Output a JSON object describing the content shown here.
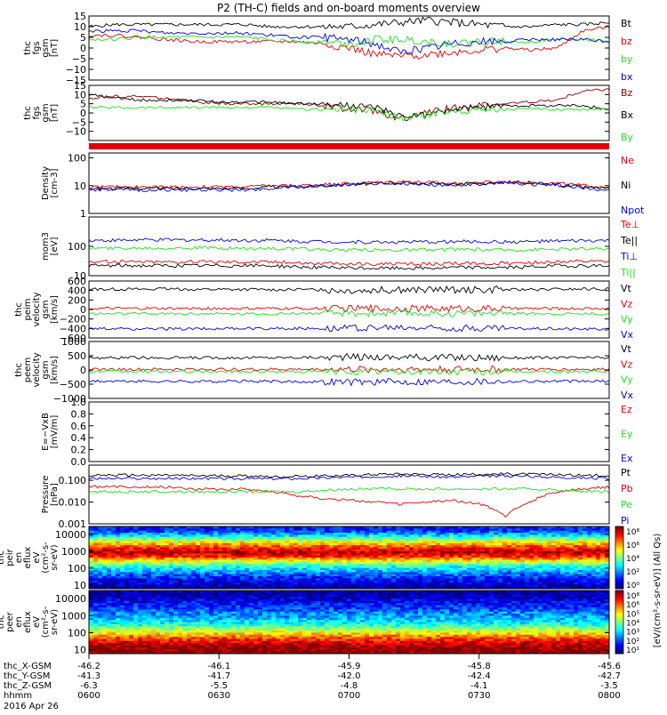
{
  "title": "P2 (TH-C) fields and on-board moments overview",
  "colors": {
    "black": "#000000",
    "red": "#e00000",
    "darkred": "#8b0000",
    "green": "#1ee01e",
    "blue": "#0000e0"
  },
  "chart_data": [
    {
      "type": "line",
      "ylabel_lines": [
        "thc",
        "fgs",
        "gsm",
        "[nT]"
      ],
      "ylim": [
        -15,
        15
      ],
      "yticks": [
        "15",
        "10",
        "5",
        "0",
        "−5",
        "−10",
        "−15"
      ],
      "tick_values": [
        15,
        10,
        5,
        0,
        -5,
        -10,
        -15
      ],
      "series": [
        {
          "name": "Bt",
          "color": "black",
          "values": [
            10,
            11,
            11,
            11,
            11,
            11,
            11,
            10,
            10,
            10,
            10,
            11,
            12,
            13,
            12,
            11,
            10,
            10,
            11,
            11,
            12
          ]
        },
        {
          "name": "bz",
          "color": "red",
          "values": [
            6,
            6,
            5,
            4,
            3,
            3,
            3,
            3,
            3,
            2,
            0,
            -3,
            -4,
            -3,
            -2,
            -1,
            0,
            -1,
            0,
            8,
            10
          ]
        },
        {
          "name": "by",
          "color": "green",
          "values": [
            4,
            4,
            5,
            5,
            5,
            5,
            5,
            4,
            3,
            3,
            2,
            4,
            4,
            3,
            2,
            3,
            3,
            3,
            4,
            4,
            3
          ]
        },
        {
          "name": "bx",
          "color": "blue",
          "values": [
            8,
            8,
            8,
            7,
            7,
            7,
            7,
            6,
            5,
            5,
            4,
            2,
            -2,
            0,
            2,
            3,
            3,
            4,
            4,
            4,
            3
          ]
        }
      ]
    },
    {
      "type": "line",
      "ylabel_lines": [
        "thc",
        "fgs",
        "gsm",
        "[nT]"
      ],
      "ylim": [
        -15,
        15
      ],
      "yticks": [
        "15",
        "10",
        "5",
        "0",
        "−5",
        "−10"
      ],
      "tick_values": [
        15,
        10,
        5,
        0,
        -5,
        -10
      ],
      "series": [
        {
          "name": "Bz",
          "color": "darkred",
          "values": [
            8,
            9,
            9,
            8,
            6,
            5,
            5,
            5,
            5,
            4,
            2,
            1,
            -3,
            0,
            3,
            4,
            5,
            6,
            7,
            12,
            13
          ]
        },
        {
          "name": "Bx",
          "color": "black",
          "values": [
            10,
            8,
            7,
            7,
            7,
            6,
            6,
            6,
            5,
            5,
            4,
            3,
            -2,
            -1,
            2,
            3,
            4,
            4,
            4,
            4,
            2
          ]
        },
        {
          "name": "By",
          "color": "green",
          "values": [
            3,
            3,
            3,
            3,
            3,
            3,
            3,
            3,
            2,
            2,
            2,
            1,
            -3,
            -1,
            1,
            2,
            2,
            2,
            2,
            2,
            2
          ]
        }
      ]
    },
    {
      "type": "line",
      "ylabel_lines": [
        "Density",
        "[cm-3]"
      ],
      "yscale": "log",
      "ylim": [
        1,
        150
      ],
      "yticks": [
        "100",
        "10",
        "1"
      ],
      "tick_values": [
        100,
        10,
        1
      ],
      "series": [
        {
          "name": "Ne",
          "color": "red",
          "values": [
            9,
            9,
            9,
            9,
            9,
            9,
            9,
            10,
            10,
            11,
            12,
            13,
            14,
            13,
            12,
            13,
            14,
            13,
            12,
            10,
            9
          ]
        },
        {
          "name": "Ni",
          "color": "black",
          "values": [
            8,
            8,
            8,
            8,
            8,
            8,
            8,
            9,
            9,
            10,
            11,
            12,
            13,
            12,
            11,
            12,
            13,
            12,
            11,
            9,
            8
          ]
        },
        {
          "name": "Npot",
          "color": "blue",
          "values": [
            7,
            7,
            7,
            7,
            7,
            7,
            7,
            8,
            9,
            10,
            11,
            12,
            12,
            11,
            10,
            11,
            12,
            11,
            10,
            8,
            7
          ]
        }
      ]
    },
    {
      "type": "line",
      "ylabel_lines": [
        "mom3",
        "[eV]"
      ],
      "yscale": "log",
      "ylim": [
        10,
        1000
      ],
      "yticks": [
        "100",
        "10"
      ],
      "tick_values": [
        100,
        10
      ],
      "series": [
        {
          "name": "Te⊥",
          "color": "red",
          "values": [
            30,
            30,
            30,
            30,
            30,
            30,
            30,
            30,
            28,
            26,
            25,
            25,
            25,
            25,
            26,
            26,
            26,
            28,
            30,
            30,
            30
          ]
        },
        {
          "name": "Te||",
          "color": "black",
          "values": [
            22,
            22,
            22,
            22,
            22,
            22,
            22,
            22,
            20,
            19,
            18,
            18,
            18,
            18,
            19,
            19,
            19,
            20,
            22,
            22,
            22
          ]
        },
        {
          "name": "Ti⊥",
          "color": "blue",
          "values": [
            160,
            160,
            165,
            165,
            165,
            165,
            160,
            160,
            150,
            145,
            140,
            140,
            140,
            140,
            145,
            145,
            140,
            145,
            150,
            155,
            155
          ]
        },
        {
          "name": "Ti||",
          "color": "green",
          "values": [
            85,
            85,
            88,
            88,
            88,
            88,
            85,
            85,
            80,
            78,
            75,
            75,
            75,
            75,
            78,
            78,
            75,
            78,
            80,
            82,
            82
          ]
        }
      ]
    },
    {
      "type": "line",
      "ylabel_lines": [
        "thc",
        "peim",
        "velocity",
        "gsm",
        "[km/s]"
      ],
      "ylim": [
        -600,
        600
      ],
      "yticks": [
        "600",
        "400",
        "200",
        "0",
        "−200",
        "−400",
        "−600"
      ],
      "tick_values": [
        600,
        400,
        200,
        0,
        -200,
        -400,
        -600
      ],
      "series": [
        {
          "name": "Vt",
          "color": "black",
          "values": [
            430,
            430,
            430,
            430,
            425,
            425,
            420,
            420,
            420,
            415,
            410,
            410,
            410,
            410,
            415,
            420,
            420,
            420,
            425,
            430,
            430
          ]
        },
        {
          "name": "Vz",
          "color": "red",
          "values": [
            20,
            20,
            20,
            20,
            20,
            20,
            20,
            20,
            20,
            20,
            20,
            20,
            20,
            20,
            20,
            20,
            20,
            20,
            20,
            20,
            20
          ]
        },
        {
          "name": "Vy",
          "color": "green",
          "values": [
            -90,
            -90,
            -90,
            -90,
            -90,
            -90,
            -90,
            -90,
            -80,
            -80,
            -80,
            -80,
            -80,
            -80,
            -80,
            -80,
            -80,
            -80,
            -90,
            -90,
            -90
          ]
        },
        {
          "name": "Vx",
          "color": "blue",
          "values": [
            -410,
            -410,
            -410,
            -410,
            -405,
            -405,
            -400,
            -400,
            -400,
            -395,
            -390,
            -390,
            -390,
            -390,
            -395,
            -400,
            -400,
            -400,
            -405,
            -410,
            -410
          ]
        }
      ]
    },
    {
      "type": "line",
      "ylabel_lines": [
        "thc",
        "peem",
        "velocity",
        "gsm",
        "[km/s]"
      ],
      "ylim": [
        -1000,
        1000
      ],
      "yticks": [
        "1000",
        "500",
        "0",
        "−500",
        "−1000"
      ],
      "tick_values": [
        1000,
        500,
        0,
        -500,
        -1000
      ],
      "series": [
        {
          "name": "Vt",
          "color": "black",
          "values": [
            430,
            430,
            430,
            430,
            430,
            430,
            430,
            430,
            440,
            440,
            450,
            450,
            450,
            440,
            440,
            430,
            430,
            430,
            430,
            430,
            430
          ]
        },
        {
          "name": "Vz",
          "color": "red",
          "values": [
            20,
            20,
            20,
            20,
            20,
            20,
            20,
            20,
            20,
            20,
            20,
            20,
            20,
            20,
            20,
            20,
            20,
            20,
            20,
            20,
            20
          ]
        },
        {
          "name": "Vy",
          "color": "green",
          "values": [
            -60,
            -60,
            -60,
            -60,
            -60,
            -60,
            -60,
            -60,
            -60,
            -60,
            -60,
            -60,
            -60,
            -60,
            -60,
            -60,
            -60,
            -60,
            -60,
            -60,
            -60
          ]
        },
        {
          "name": "Vx",
          "color": "blue",
          "values": [
            -400,
            -400,
            -400,
            -400,
            -400,
            -400,
            -400,
            -400,
            -410,
            -410,
            -420,
            -420,
            -420,
            -410,
            -410,
            -400,
            -400,
            -400,
            -400,
            -400,
            -400
          ]
        }
      ]
    },
    {
      "type": "line",
      "ylabel_lines": [
        "E=−VxB",
        "[mV/m]"
      ],
      "ylim": [
        0,
        1
      ],
      "yticks": [
        "1.0",
        "0.8",
        "0.6",
        "0.4",
        "0.2",
        "0.0"
      ],
      "tick_values": [
        1.0,
        0.8,
        0.6,
        0.4,
        0.2,
        0.0
      ],
      "series": [
        {
          "name": "Ez",
          "color": "red",
          "values": []
        },
        {
          "name": "Ey",
          "color": "green",
          "values": []
        },
        {
          "name": "Ex",
          "color": "blue",
          "values": []
        }
      ]
    },
    {
      "type": "line",
      "ylabel_lines": [
        "Pressure",
        "[nPa]"
      ],
      "yscale": "log",
      "ylim": [
        0.001,
        0.5
      ],
      "yticks": [
        "0.100",
        "0.010",
        "0.001"
      ],
      "tick_values": [
        0.1,
        0.01,
        0.001
      ],
      "series": [
        {
          "name": "Pt",
          "color": "black",
          "values": [
            0.17,
            0.17,
            0.17,
            0.17,
            0.16,
            0.16,
            0.16,
            0.15,
            0.15,
            0.16,
            0.17,
            0.19,
            0.2,
            0.19,
            0.18,
            0.19,
            0.2,
            0.19,
            0.18,
            0.17,
            0.17
          ]
        },
        {
          "name": "Pb",
          "color": "red",
          "values": [
            0.05,
            0.05,
            0.05,
            0.05,
            0.04,
            0.04,
            0.04,
            0.03,
            0.02,
            0.015,
            0.012,
            0.01,
            0.008,
            0.01,
            0.012,
            0.008,
            0.002,
            0.01,
            0.03,
            0.04,
            0.05
          ]
        },
        {
          "name": "Pe",
          "color": "green",
          "values": [
            0.03,
            0.03,
            0.03,
            0.03,
            0.03,
            0.03,
            0.03,
            0.03,
            0.03,
            0.035,
            0.04,
            0.04,
            0.04,
            0.04,
            0.04,
            0.04,
            0.04,
            0.04,
            0.035,
            0.03,
            0.03
          ]
        },
        {
          "name": "Pi",
          "color": "blue",
          "values": [
            0.12,
            0.12,
            0.12,
            0.12,
            0.12,
            0.12,
            0.12,
            0.12,
            0.12,
            0.13,
            0.14,
            0.15,
            0.16,
            0.15,
            0.14,
            0.15,
            0.16,
            0.15,
            0.14,
            0.13,
            0.12
          ]
        }
      ]
    },
    {
      "type": "heatmap",
      "ylabel_lines": [
        "thc",
        "peir",
        "en",
        "eflux",
        "eV",
        "(cm²-s-",
        "sr-eV)"
      ],
      "yscale": "log",
      "ylim": [
        6,
        30000
      ],
      "yticks": [
        "10000",
        "1000",
        "100",
        "10"
      ],
      "tick_values": [
        10000,
        1000,
        100,
        10
      ],
      "bands": [
        {
          "energy": 20000,
          "level": 0.15
        },
        {
          "energy": 10000,
          "level": 0.3
        },
        {
          "energy": 4000,
          "level": 0.6
        },
        {
          "energy": 1500,
          "level": 0.85
        },
        {
          "energy": 900,
          "level": 0.95
        },
        {
          "energy": 500,
          "level": 0.85
        },
        {
          "energy": 250,
          "level": 0.6
        },
        {
          "energy": 120,
          "level": 0.4
        },
        {
          "energy": 50,
          "level": 0.25
        },
        {
          "energy": 20,
          "level": 0.12
        },
        {
          "energy": 8,
          "level": 0.05
        }
      ]
    },
    {
      "type": "heatmap",
      "ylabel_lines": [
        "thc",
        "peer",
        "en",
        "eflux",
        "eV",
        "(cm²-s-",
        "sr-eV)"
      ],
      "yscale": "log",
      "ylim": [
        6,
        30000
      ],
      "yticks": [
        "10000",
        "1000",
        "100",
        "10"
      ],
      "tick_values": [
        10000,
        1000,
        100,
        10
      ],
      "bands": [
        {
          "energy": 20000,
          "level": 0.02
        },
        {
          "energy": 10000,
          "level": 0.08
        },
        {
          "energy": 4000,
          "level": 0.15
        },
        {
          "energy": 1500,
          "level": 0.25
        },
        {
          "energy": 700,
          "level": 0.3
        },
        {
          "energy": 300,
          "level": 0.4
        },
        {
          "energy": 120,
          "level": 0.6
        },
        {
          "energy": 50,
          "level": 0.8
        },
        {
          "energy": 20,
          "level": 0.95
        },
        {
          "energy": 10,
          "level": 1.0
        },
        {
          "energy": 7,
          "level": 1.0
        }
      ]
    }
  ],
  "colorbar": {
    "label": "[eV/(cm²-s-sr-eV)] (All Qs)",
    "ticks_top": [
      "10⁸",
      "10⁶",
      "10⁴",
      "10²",
      "10⁰"
    ],
    "ticks_bottom": [
      "10⁸",
      "10⁶",
      "10⁵",
      "10⁴",
      "10³",
      "10²",
      "10¹"
    ]
  },
  "xaxis": {
    "ticks_hhmm": [
      "0600",
      "0630",
      "0700",
      "0730",
      "0800"
    ],
    "rows": [
      {
        "label": "thc_X-GSM",
        "values": [
          "-46.2",
          "-46.1",
          "-45.9",
          "-45.8",
          "-45.6"
        ]
      },
      {
        "label": "thc_Y-GSM",
        "values": [
          "-41.3",
          "-41.7",
          "-42.0",
          "-42.4",
          "-42.7"
        ]
      },
      {
        "label": "thc_Z-GSM",
        "values": [
          "-6.3",
          "-5.5",
          "-4.8",
          "-4.1",
          "-3.5"
        ]
      },
      {
        "label": "hhmm",
        "values": [
          "0600",
          "0630",
          "0700",
          "0730",
          "0800"
        ]
      }
    ],
    "date": "2016 Apr 26"
  }
}
